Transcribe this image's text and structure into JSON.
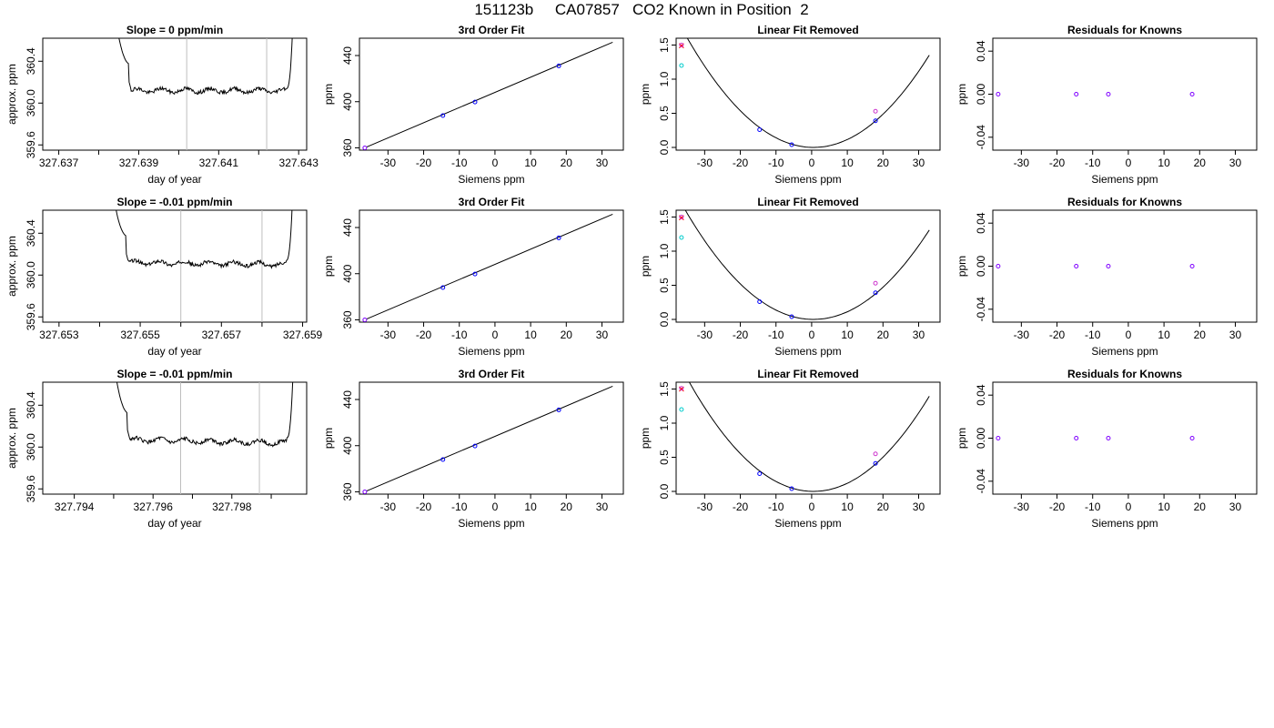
{
  "title": "151123b     CA07857   CO2 Known in Position  2",
  "colors": {
    "frame": "#000000",
    "line": "#000000",
    "vline": "#bebebe",
    "blue": "#0000ff",
    "cyan": "#00cccc",
    "magenta": "#cc33cc",
    "purple": "#7f00ff",
    "red": "#ff0000"
  },
  "rows": [
    {
      "doy": {
        "title": "Slope =  0  ppm/min",
        "xlabel": "day of year",
        "ylabel": "approx. ppm",
        "xlim": [
          327.6366,
          327.6432
        ],
        "ylim": [
          359.55,
          360.62
        ],
        "xticks": [
          327.637,
          327.638,
          327.639,
          327.64,
          327.641,
          327.642,
          327.643
        ],
        "xtick_labels": [
          "327.637",
          "",
          "327.639",
          "",
          "327.641",
          "",
          "327.643"
        ],
        "yticks": [
          359.6,
          360.0,
          360.4
        ],
        "ytick_labels": [
          "359.6",
          "360.0",
          "360.4"
        ],
        "vlines": [
          327.6402,
          327.6422
        ],
        "trace": {
          "start": 327.6383,
          "end": 327.6429,
          "level": 360.12,
          "plateau_start": 327.6388,
          "plateau_end": 327.6427,
          "drift": 0.0
        }
      },
      "fit": {
        "title": "3rd Order Fit",
        "xlabel": "Siemens ppm",
        "ylabel": "ppm",
        "xlim": [
          -38,
          36
        ],
        "ylim": [
          358,
          455
        ],
        "xticks": [
          -30,
          -20,
          -10,
          0,
          10,
          20,
          30
        ],
        "yticks": [
          360,
          400,
          440
        ],
        "line": {
          "x": [
            -36,
            33
          ],
          "y": [
            360.7,
            451.5
          ]
        },
        "points": [
          {
            "x": -36.5,
            "y": 360.0,
            "color": "purple"
          },
          {
            "x": -14.6,
            "y": 388.0,
            "color": "blue"
          },
          {
            "x": -5.6,
            "y": 399.7,
            "color": "blue"
          },
          {
            "x": 17.9,
            "y": 431.0,
            "color": "blue"
          }
        ]
      },
      "resid": {
        "title": "Linear Fit Removed",
        "xlabel": "Siemens ppm",
        "ylabel": "ppm",
        "xlim": [
          -38,
          36
        ],
        "ylim": [
          -0.04,
          1.6
        ],
        "xticks": [
          -30,
          -20,
          -10,
          0,
          10,
          20,
          30
        ],
        "yticks": [
          0.0,
          0.5,
          1.0,
          1.5
        ],
        "ytick_labels": [
          "0.0",
          "0.5",
          "1.0",
          "1.5"
        ],
        "curve": {
          "a": 0.00128,
          "x0": 0.5,
          "from": -37.5,
          "to": 33
        },
        "points": [
          {
            "x": -36.5,
            "y": 1.49,
            "color": "red"
          },
          {
            "x": -36.5,
            "y": 1.5,
            "color": "magenta"
          },
          {
            "x": -36.5,
            "y": 1.2,
            "color": "cyan"
          },
          {
            "x": -14.6,
            "y": 0.26,
            "color": "blue"
          },
          {
            "x": -5.6,
            "y": 0.04,
            "color": "blue"
          },
          {
            "x": 17.9,
            "y": 0.39,
            "color": "blue"
          },
          {
            "x": 17.9,
            "y": 0.53,
            "color": "magenta"
          }
        ]
      },
      "known": {
        "title": "Residuals for Knowns",
        "xlabel": "Siemens ppm",
        "ylabel": "ppm",
        "xlim": [
          -38,
          36
        ],
        "ylim": [
          -0.052,
          0.052
        ],
        "xticks": [
          -30,
          -20,
          -10,
          0,
          10,
          20,
          30
        ],
        "yticks": [
          -0.04,
          0.0,
          0.04
        ],
        "ytick_labels": [
          "-0.04",
          "0.00",
          "0.04"
        ],
        "points": [
          {
            "x": -36.5,
            "y": 0.0,
            "color": "purple"
          },
          {
            "x": -14.6,
            "y": 0.0,
            "color": "purple"
          },
          {
            "x": -5.6,
            "y": 0.0,
            "color": "purple"
          },
          {
            "x": 17.9,
            "y": 0.0,
            "color": "purple"
          }
        ]
      }
    },
    {
      "doy": {
        "title": "Slope =  -0.01  ppm/min",
        "xlabel": "day of year",
        "ylabel": "approx. ppm",
        "xlim": [
          327.6526,
          327.6591
        ],
        "ylim": [
          359.55,
          360.62
        ],
        "xticks": [
          327.653,
          327.654,
          327.655,
          327.656,
          327.657,
          327.658,
          327.659
        ],
        "xtick_labels": [
          "327.653",
          "",
          "327.655",
          "",
          "327.657",
          "",
          "327.659"
        ],
        "yticks": [
          359.6,
          360.0,
          360.4
        ],
        "ytick_labels": [
          "359.6",
          "360.0",
          "360.4"
        ],
        "vlines": [
          327.656,
          327.658
        ],
        "trace": {
          "start": 327.6542,
          "end": 327.6588,
          "level": 360.12,
          "plateau_start": 327.6547,
          "plateau_end": 327.6586,
          "drift": -0.02
        }
      },
      "fit": {
        "title": "3rd Order Fit",
        "xlabel": "Siemens ppm",
        "ylabel": "ppm",
        "xlim": [
          -38,
          36
        ],
        "ylim": [
          358,
          455
        ],
        "xticks": [
          -30,
          -20,
          -10,
          0,
          10,
          20,
          30
        ],
        "yticks": [
          360,
          400,
          440
        ],
        "line": {
          "x": [
            -36,
            33
          ],
          "y": [
            360.7,
            451.5
          ]
        },
        "points": [
          {
            "x": -36.5,
            "y": 360.0,
            "color": "purple"
          },
          {
            "x": -14.6,
            "y": 388.0,
            "color": "blue"
          },
          {
            "x": -5.6,
            "y": 399.7,
            "color": "blue"
          },
          {
            "x": 17.9,
            "y": 431.0,
            "color": "blue"
          }
        ]
      },
      "resid": {
        "title": "Linear Fit Removed",
        "xlabel": "Siemens ppm",
        "ylabel": "ppm",
        "xlim": [
          -38,
          36
        ],
        "ylim": [
          -0.04,
          1.6
        ],
        "xticks": [
          -30,
          -20,
          -10,
          0,
          10,
          20,
          30
        ],
        "yticks": [
          0.0,
          0.5,
          1.0,
          1.5
        ],
        "ytick_labels": [
          "0.0",
          "0.5",
          "1.0",
          "1.5"
        ],
        "curve": {
          "a": 0.00124,
          "x0": 0.5,
          "from": -37.5,
          "to": 33
        },
        "points": [
          {
            "x": -36.5,
            "y": 1.49,
            "color": "red"
          },
          {
            "x": -36.5,
            "y": 1.5,
            "color": "magenta"
          },
          {
            "x": -36.5,
            "y": 1.2,
            "color": "cyan"
          },
          {
            "x": -14.6,
            "y": 0.26,
            "color": "blue"
          },
          {
            "x": -5.6,
            "y": 0.04,
            "color": "blue"
          },
          {
            "x": 17.9,
            "y": 0.39,
            "color": "blue"
          },
          {
            "x": 17.9,
            "y": 0.53,
            "color": "magenta"
          }
        ]
      },
      "known": {
        "title": "Residuals for Knowns",
        "xlabel": "Siemens ppm",
        "ylabel": "ppm",
        "xlim": [
          -38,
          36
        ],
        "ylim": [
          -0.052,
          0.052
        ],
        "xticks": [
          -30,
          -20,
          -10,
          0,
          10,
          20,
          30
        ],
        "yticks": [
          -0.04,
          0.0,
          0.04
        ],
        "ytick_labels": [
          "-0.04",
          "0.00",
          "0.04"
        ],
        "points": [
          {
            "x": -36.5,
            "y": 0.0,
            "color": "purple"
          },
          {
            "x": -14.6,
            "y": 0.0,
            "color": "purple"
          },
          {
            "x": -5.6,
            "y": 0.0,
            "color": "purple"
          },
          {
            "x": 17.9,
            "y": 0.0,
            "color": "purple"
          }
        ]
      }
    },
    {
      "doy": {
        "title": "Slope =  -0.01  ppm/min",
        "xlabel": "day of year",
        "ylabel": "approx. ppm",
        "xlim": [
          327.7932,
          327.7999
        ],
        "ylim": [
          359.55,
          360.62
        ],
        "xticks": [
          327.794,
          327.795,
          327.796,
          327.797,
          327.798,
          327.799
        ],
        "xtick_labels": [
          "327.794",
          "",
          "327.796",
          "",
          "327.798",
          ""
        ],
        "yticks": [
          359.6,
          360.0,
          360.4
        ],
        "ytick_labels": [
          "359.6",
          "360.0",
          "360.4"
        ],
        "vlines": [
          327.7967,
          327.7987
        ],
        "trace": {
          "start": 327.7949,
          "end": 327.7996,
          "level": 360.07,
          "plateau_start": 327.7954,
          "plateau_end": 327.7994,
          "drift": -0.03
        }
      },
      "fit": {
        "title": "3rd Order Fit",
        "xlabel": "Siemens ppm",
        "ylabel": "ppm",
        "xlim": [
          -38,
          36
        ],
        "ylim": [
          358,
          455
        ],
        "xticks": [
          -30,
          -20,
          -10,
          0,
          10,
          20,
          30
        ],
        "yticks": [
          360,
          400,
          440
        ],
        "line": {
          "x": [
            -36,
            33
          ],
          "y": [
            360.7,
            451.5
          ]
        },
        "points": [
          {
            "x": -36.5,
            "y": 360.0,
            "color": "purple"
          },
          {
            "x": -14.6,
            "y": 388.0,
            "color": "blue"
          },
          {
            "x": -5.6,
            "y": 399.7,
            "color": "blue"
          },
          {
            "x": 17.9,
            "y": 431.0,
            "color": "blue"
          }
        ]
      },
      "resid": {
        "title": "Linear Fit Removed",
        "xlabel": "Siemens ppm",
        "ylabel": "ppm",
        "xlim": [
          -38,
          36
        ],
        "ylim": [
          -0.04,
          1.6
        ],
        "xticks": [
          -30,
          -20,
          -10,
          0,
          10,
          20,
          30
        ],
        "yticks": [
          0.0,
          0.5,
          1.0,
          1.5
        ],
        "ytick_labels": [
          "0.0",
          "0.5",
          "1.0",
          "1.5"
        ],
        "curve": {
          "a": 0.00132,
          "x0": 0.5,
          "from": -37.5,
          "to": 33
        },
        "points": [
          {
            "x": -36.5,
            "y": 1.5,
            "color": "red"
          },
          {
            "x": -36.5,
            "y": 1.51,
            "color": "magenta"
          },
          {
            "x": -36.5,
            "y": 1.2,
            "color": "cyan"
          },
          {
            "x": -14.6,
            "y": 0.26,
            "color": "blue"
          },
          {
            "x": -5.6,
            "y": 0.04,
            "color": "blue"
          },
          {
            "x": 17.9,
            "y": 0.41,
            "color": "blue"
          },
          {
            "x": 17.9,
            "y": 0.55,
            "color": "magenta"
          }
        ]
      },
      "known": {
        "title": "Residuals for Knowns",
        "xlabel": "Siemens ppm",
        "ylabel": "ppm",
        "xlim": [
          -38,
          36
        ],
        "ylim": [
          -0.052,
          0.052
        ],
        "xticks": [
          -30,
          -20,
          -10,
          0,
          10,
          20,
          30
        ],
        "yticks": [
          -0.04,
          0.0,
          0.04
        ],
        "ytick_labels": [
          "-0.04",
          "0.00",
          "0.04"
        ],
        "points": [
          {
            "x": -36.5,
            "y": 0.0,
            "color": "purple"
          },
          {
            "x": -14.6,
            "y": 0.0,
            "color": "purple"
          },
          {
            "x": -5.6,
            "y": 0.0,
            "color": "purple"
          },
          {
            "x": 17.9,
            "y": 0.0,
            "color": "purple"
          }
        ]
      }
    }
  ]
}
